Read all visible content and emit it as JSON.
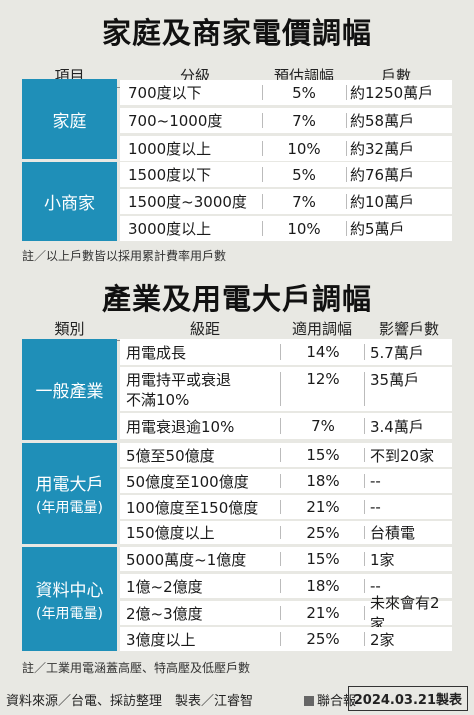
{
  "t1": {
    "title": "家庭及商家電價調幅",
    "headers": [
      "項目",
      "分級",
      "預估調幅",
      "戶數"
    ],
    "groups": [
      {
        "name": "家庭",
        "rows": [
          [
            "700度以下",
            "5%",
            "約1250萬戶"
          ],
          [
            "700~1000度",
            "7%",
            "約58萬戶"
          ],
          [
            "1000度以上",
            "10%",
            "約32萬戶"
          ]
        ]
      },
      {
        "name": "小商家",
        "rows": [
          [
            "1500度以下",
            "5%",
            "約76萬戶"
          ],
          [
            "1500度~3000度",
            "7%",
            "約10萬戶"
          ],
          [
            "3000度以上",
            "10%",
            "約5萬戶"
          ]
        ]
      }
    ],
    "note": "註／以上戶數皆以採用累計費率用戶數"
  },
  "t2": {
    "title": "產業及用電大戶調幅",
    "headers": [
      "類別",
      "級距",
      "適用調幅",
      "影響戶數"
    ],
    "groups": [
      {
        "name": "一般產業",
        "sub": "",
        "rows": [
          [
            "用電成長",
            "14%",
            "5.7萬戶"
          ],
          [
            "用電持平或衰退",
            "12%",
            "35萬戶"
          ],
          [
            "不滿10%",
            "",
            ""
          ],
          [
            "用電衰退逾10%",
            "7%",
            "3.4萬戶"
          ]
        ]
      },
      {
        "name": "用電大戶",
        "sub": "(年用電量)",
        "rows": [
          [
            "5億至50億度",
            "15%",
            "不到20家"
          ],
          [
            "50億度至100億度",
            "18%",
            "--"
          ],
          [
            "100億度至150億度",
            "21%",
            "--"
          ],
          [
            "150億度以上",
            "25%",
            "台積電"
          ]
        ]
      },
      {
        "name": "資料中心",
        "sub": "(年用電量)",
        "rows": [
          [
            "5000萬度~1億度",
            "15%",
            "1家"
          ],
          [
            "1億~2億度",
            "18%",
            "--"
          ],
          [
            "2億~3億度",
            "21%",
            "未來會有2家"
          ],
          [
            "3億度以上",
            "25%",
            "2家"
          ]
        ]
      }
    ],
    "note": "註／工業用電涵蓋高壓、特高壓及低壓戶數"
  },
  "footer": {
    "source": "資料來源／台電、採訪整理　製表／江睿智",
    "brand": "聯合報",
    "date": "2024.03.21製表"
  }
}
